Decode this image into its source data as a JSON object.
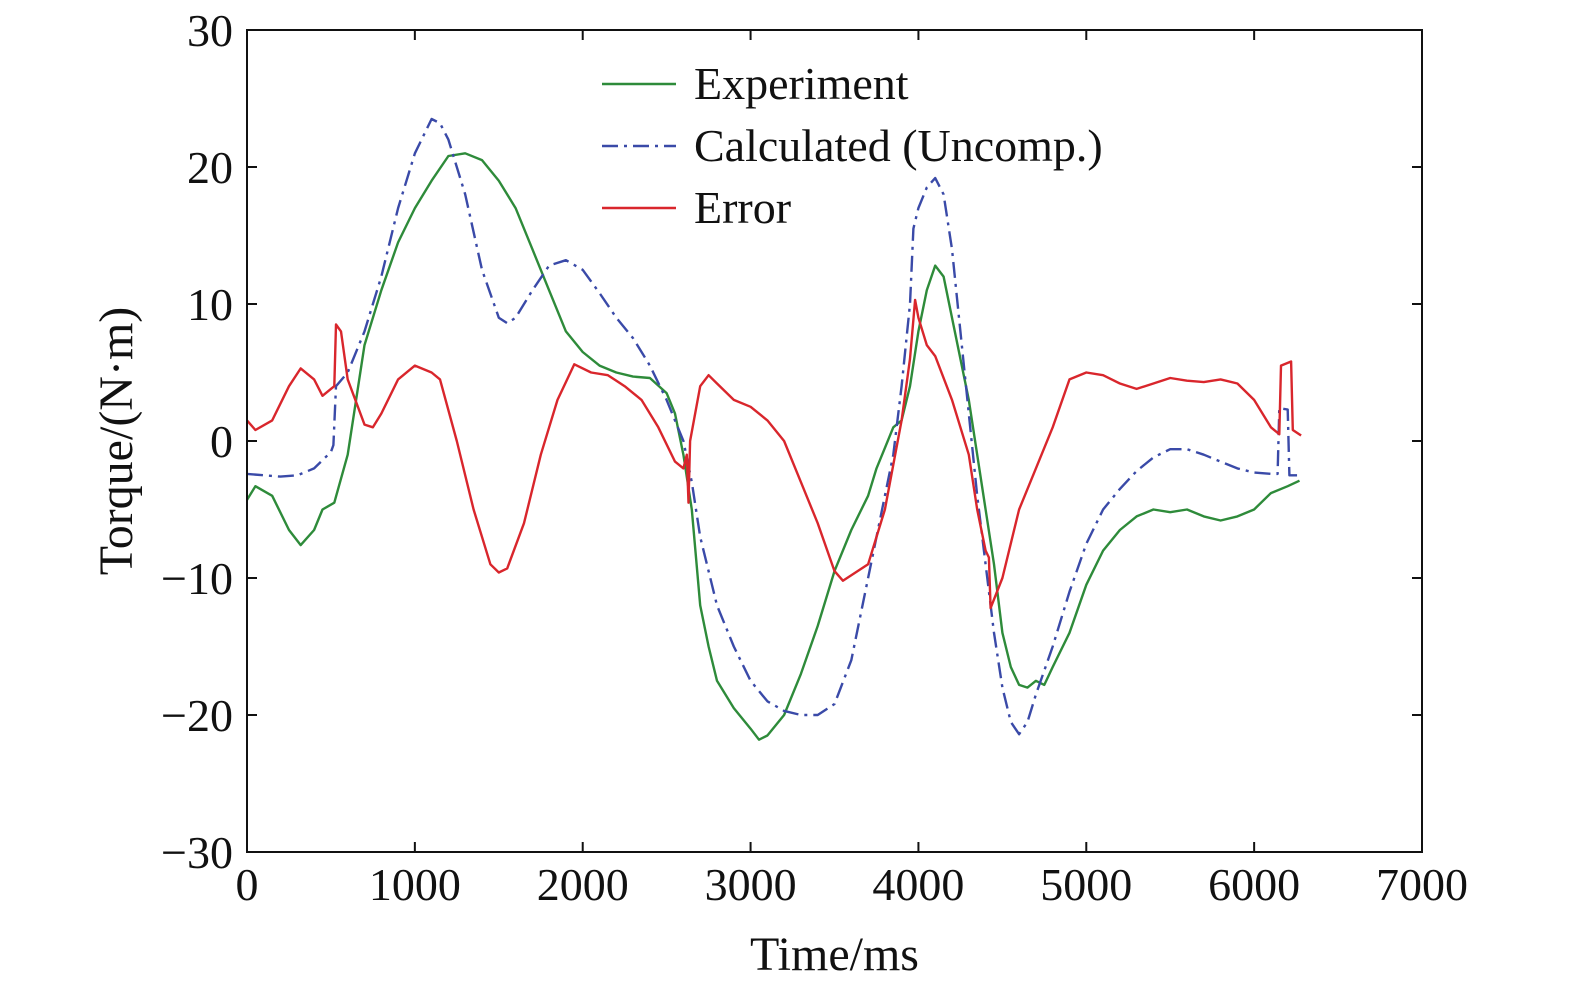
{
  "chart_data": {
    "type": "line",
    "title": "",
    "xlabel": "Time/ms",
    "ylabel": "Torque/(N·m)",
    "xlim": [
      0,
      7000
    ],
    "ylim": [
      -30,
      30
    ],
    "xticks": [
      0,
      1000,
      2000,
      3000,
      4000,
      5000,
      6000,
      7000
    ],
    "yticks": [
      30,
      20,
      10,
      0,
      -10,
      -20,
      -30
    ],
    "xtick_labels": [
      "0",
      "1000",
      "2000",
      "3000",
      "4000",
      "5000",
      "6000",
      "7000"
    ],
    "ytick_labels": [
      "30",
      "20",
      "10",
      "0",
      "−10",
      "−20",
      "−30"
    ],
    "grid": false,
    "legend_position": "top-center",
    "series": [
      {
        "name": "Experiment",
        "color": "#2e8b3a",
        "dash": "solid",
        "points": [
          [
            0,
            -4.3
          ],
          [
            50,
            -3.3
          ],
          [
            150,
            -4
          ],
          [
            250,
            -6.5
          ],
          [
            320,
            -7.6
          ],
          [
            400,
            -6.5
          ],
          [
            450,
            -5
          ],
          [
            520,
            -4.5
          ],
          [
            600,
            -1
          ],
          [
            700,
            7
          ],
          [
            800,
            11
          ],
          [
            900,
            14.5
          ],
          [
            1000,
            17
          ],
          [
            1100,
            19
          ],
          [
            1200,
            20.8
          ],
          [
            1300,
            21
          ],
          [
            1400,
            20.5
          ],
          [
            1500,
            19
          ],
          [
            1600,
            17
          ],
          [
            1700,
            14
          ],
          [
            1800,
            11
          ],
          [
            1900,
            8
          ],
          [
            2000,
            6.5
          ],
          [
            2100,
            5.5
          ],
          [
            2200,
            5
          ],
          [
            2300,
            4.7
          ],
          [
            2400,
            4.6
          ],
          [
            2500,
            3.5
          ],
          [
            2550,
            2
          ],
          [
            2600,
            -1
          ],
          [
            2650,
            -5
          ],
          [
            2700,
            -12
          ],
          [
            2750,
            -15
          ],
          [
            2800,
            -17.5
          ],
          [
            2900,
            -19.5
          ],
          [
            3000,
            -21
          ],
          [
            3050,
            -21.8
          ],
          [
            3100,
            -21.5
          ],
          [
            3200,
            -20
          ],
          [
            3300,
            -17
          ],
          [
            3400,
            -13.5
          ],
          [
            3500,
            -9.5
          ],
          [
            3600,
            -6.5
          ],
          [
            3700,
            -4
          ],
          [
            3750,
            -2
          ],
          [
            3800,
            -0.5
          ],
          [
            3850,
            1
          ],
          [
            3900,
            1.5
          ],
          [
            3950,
            4
          ],
          [
            4000,
            8
          ],
          [
            4050,
            11
          ],
          [
            4100,
            12.8
          ],
          [
            4150,
            12
          ],
          [
            4200,
            9
          ],
          [
            4300,
            3
          ],
          [
            4350,
            -1
          ],
          [
            4400,
            -5
          ],
          [
            4450,
            -9
          ],
          [
            4500,
            -14
          ],
          [
            4550,
            -16.5
          ],
          [
            4600,
            -17.8
          ],
          [
            4650,
            -18
          ],
          [
            4700,
            -17.5
          ],
          [
            4750,
            -17.8
          ],
          [
            4800,
            -16.5
          ],
          [
            4900,
            -14
          ],
          [
            5000,
            -10.5
          ],
          [
            5100,
            -8
          ],
          [
            5200,
            -6.5
          ],
          [
            5300,
            -5.5
          ],
          [
            5400,
            -5
          ],
          [
            5500,
            -5.2
          ],
          [
            5600,
            -5
          ],
          [
            5700,
            -5.5
          ],
          [
            5800,
            -5.8
          ],
          [
            5900,
            -5.5
          ],
          [
            6000,
            -5
          ],
          [
            6100,
            -3.8
          ],
          [
            6200,
            -3.3
          ],
          [
            6270,
            -2.9
          ]
        ]
      },
      {
        "name": "Calculated (Uncomp.)",
        "color": "#3a4aa8",
        "dash": "dashdot",
        "points": [
          [
            0,
            -2.4
          ],
          [
            100,
            -2.5
          ],
          [
            200,
            -2.6
          ],
          [
            300,
            -2.5
          ],
          [
            400,
            -2
          ],
          [
            500,
            -0.8
          ],
          [
            515,
            -0.3
          ],
          [
            530,
            4
          ],
          [
            600,
            5
          ],
          [
            700,
            8
          ],
          [
            800,
            12
          ],
          [
            900,
            17
          ],
          [
            1000,
            21
          ],
          [
            1100,
            23.5
          ],
          [
            1150,
            23.2
          ],
          [
            1200,
            22
          ],
          [
            1300,
            18
          ],
          [
            1400,
            12.5
          ],
          [
            1500,
            9
          ],
          [
            1550,
            8.6
          ],
          [
            1600,
            9
          ],
          [
            1700,
            11
          ],
          [
            1800,
            12.8
          ],
          [
            1900,
            13.2
          ],
          [
            2000,
            12.5
          ],
          [
            2100,
            10.8
          ],
          [
            2200,
            9
          ],
          [
            2300,
            7.5
          ],
          [
            2400,
            5.5
          ],
          [
            2500,
            3
          ],
          [
            2600,
            0
          ],
          [
            2650,
            -3
          ],
          [
            2700,
            -7
          ],
          [
            2800,
            -12
          ],
          [
            2900,
            -15
          ],
          [
            3000,
            -17.5
          ],
          [
            3100,
            -19
          ],
          [
            3200,
            -19.7
          ],
          [
            3300,
            -20
          ],
          [
            3400,
            -20
          ],
          [
            3500,
            -19.2
          ],
          [
            3600,
            -16
          ],
          [
            3700,
            -10
          ],
          [
            3800,
            -4
          ],
          [
            3850,
            -1
          ],
          [
            3900,
            4
          ],
          [
            3950,
            10
          ],
          [
            3970,
            15.5
          ],
          [
            4000,
            17
          ],
          [
            4050,
            18.5
          ],
          [
            4100,
            19.2
          ],
          [
            4150,
            18
          ],
          [
            4200,
            14
          ],
          [
            4250,
            8
          ],
          [
            4300,
            2
          ],
          [
            4350,
            -4
          ],
          [
            4400,
            -9
          ],
          [
            4450,
            -14
          ],
          [
            4500,
            -18
          ],
          [
            4550,
            -20.5
          ],
          [
            4600,
            -21.4
          ],
          [
            4650,
            -20.5
          ],
          [
            4700,
            -18.5
          ],
          [
            4800,
            -15
          ],
          [
            4900,
            -11
          ],
          [
            5000,
            -7.5
          ],
          [
            5100,
            -5
          ],
          [
            5200,
            -3.5
          ],
          [
            5300,
            -2.2
          ],
          [
            5400,
            -1.2
          ],
          [
            5500,
            -0.6
          ],
          [
            5600,
            -0.6
          ],
          [
            5700,
            -1
          ],
          [
            5800,
            -1.5
          ],
          [
            5900,
            -2
          ],
          [
            6000,
            -2.3
          ],
          [
            6100,
            -2.4
          ],
          [
            6140,
            -2.4
          ],
          [
            6150,
            2.4
          ],
          [
            6200,
            2.3
          ],
          [
            6210,
            -2.5
          ],
          [
            6260,
            -2.5
          ]
        ]
      },
      {
        "name": "Error",
        "color": "#d9262c",
        "dash": "solid",
        "points": [
          [
            0,
            1.5
          ],
          [
            50,
            0.8
          ],
          [
            150,
            1.5
          ],
          [
            250,
            4
          ],
          [
            320,
            5.3
          ],
          [
            400,
            4.5
          ],
          [
            450,
            3.3
          ],
          [
            500,
            3.8
          ],
          [
            520,
            4
          ],
          [
            530,
            8.5
          ],
          [
            560,
            8
          ],
          [
            600,
            4.5
          ],
          [
            700,
            1.2
          ],
          [
            750,
            1
          ],
          [
            800,
            2
          ],
          [
            900,
            4.5
          ],
          [
            1000,
            5.5
          ],
          [
            1100,
            5
          ],
          [
            1150,
            4.5
          ],
          [
            1250,
            0
          ],
          [
            1350,
            -5
          ],
          [
            1450,
            -9
          ],
          [
            1500,
            -9.6
          ],
          [
            1550,
            -9.3
          ],
          [
            1650,
            -6
          ],
          [
            1750,
            -1
          ],
          [
            1850,
            3
          ],
          [
            1950,
            5.6
          ],
          [
            2050,
            5
          ],
          [
            2150,
            4.8
          ],
          [
            2250,
            4
          ],
          [
            2350,
            3
          ],
          [
            2450,
            1
          ],
          [
            2550,
            -1.5
          ],
          [
            2600,
            -2
          ],
          [
            2620,
            -1
          ],
          [
            2630,
            -4.5
          ],
          [
            2640,
            0
          ],
          [
            2700,
            4
          ],
          [
            2750,
            4.8
          ],
          [
            2800,
            4.2
          ],
          [
            2900,
            3
          ],
          [
            3000,
            2.5
          ],
          [
            3100,
            1.5
          ],
          [
            3200,
            0
          ],
          [
            3300,
            -3
          ],
          [
            3400,
            -6
          ],
          [
            3500,
            -9.5
          ],
          [
            3550,
            -10.2
          ],
          [
            3600,
            -9.8
          ],
          [
            3700,
            -9
          ],
          [
            3800,
            -5
          ],
          [
            3900,
            1.5
          ],
          [
            3950,
            6
          ],
          [
            3980,
            10.3
          ],
          [
            4000,
            9
          ],
          [
            4050,
            7
          ],
          [
            4100,
            6.2
          ],
          [
            4200,
            3
          ],
          [
            4300,
            -1
          ],
          [
            4350,
            -5
          ],
          [
            4400,
            -8
          ],
          [
            4420,
            -8.5
          ],
          [
            4430,
            -12.2
          ],
          [
            4500,
            -10
          ],
          [
            4600,
            -5
          ],
          [
            4700,
            -2
          ],
          [
            4800,
            1
          ],
          [
            4900,
            4.5
          ],
          [
            5000,
            5
          ],
          [
            5100,
            4.8
          ],
          [
            5200,
            4.2
          ],
          [
            5300,
            3.8
          ],
          [
            5400,
            4.2
          ],
          [
            5500,
            4.6
          ],
          [
            5600,
            4.4
          ],
          [
            5700,
            4.3
          ],
          [
            5800,
            4.5
          ],
          [
            5900,
            4.2
          ],
          [
            6000,
            3
          ],
          [
            6100,
            1
          ],
          [
            6150,
            0.5
          ],
          [
            6160,
            5.5
          ],
          [
            6220,
            5.8
          ],
          [
            6230,
            0.8
          ],
          [
            6280,
            0.4
          ]
        ]
      }
    ]
  }
}
